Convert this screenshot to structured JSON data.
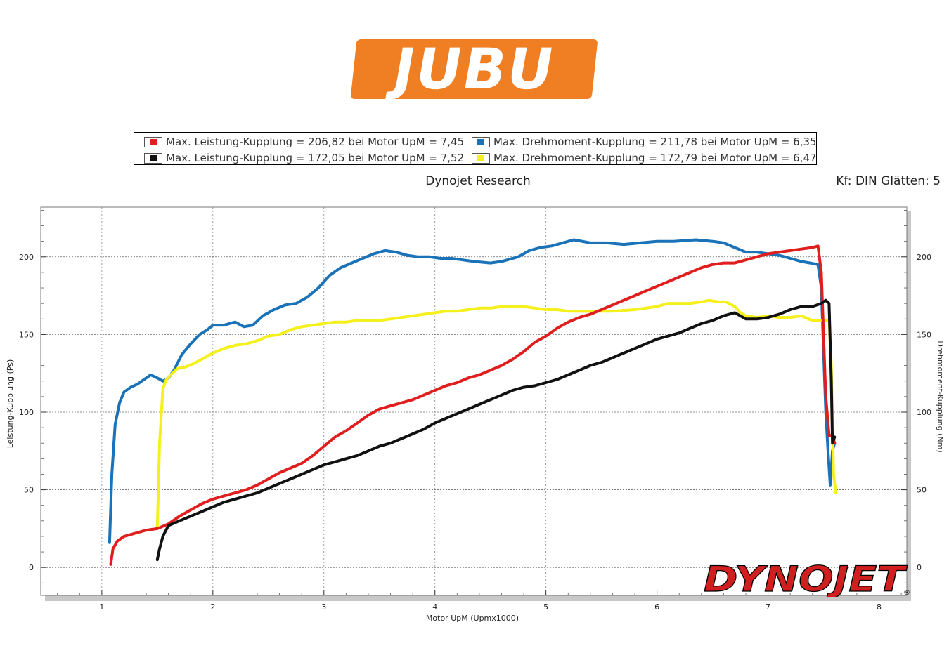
{
  "logo": {
    "text": "JUBU",
    "color": "#f07f24"
  },
  "legend": {
    "items": [
      {
        "label": "Max. Leistung-Kupplung = 206,82 bei Motor UpM = 7,45",
        "color": "#e01e1e"
      },
      {
        "label": "Max. Drehmoment-Kupplung = 211,78 bei Motor UpM = 6,35",
        "color": "#1a72b8"
      },
      {
        "label": "Max. Leistung-Kupplung = 172,05 bei Motor UpM = 7,52",
        "color": "#111111"
      },
      {
        "label": "Max. Drehmoment-Kupplung = 172,79 bei Motor UpM = 6,47",
        "color": "#f5f01c"
      }
    ]
  },
  "header": {
    "title": "Dynojet Research",
    "kf": "Kf: DIN Glätten: 5"
  },
  "brand": {
    "text": "DYNOJET",
    "registered": "®",
    "color": "#d11f1f"
  },
  "chart_data": {
    "type": "line",
    "xlabel": "Motor UpM (Upmx1000)",
    "ylabel_left": "Leistung-Kupplung (Ps)",
    "ylabel_right": "Drehmoment-Kupplung (Nm)",
    "xlim": [
      0.45,
      8.25
    ],
    "ylim": [
      -18,
      232
    ],
    "x_ticks": [
      1,
      2,
      3,
      4,
      5,
      6,
      7,
      8
    ],
    "y_ticks": [
      0,
      50,
      100,
      150,
      200
    ],
    "grid": true,
    "series": [
      {
        "color": "#1a72b8",
        "points": [
          [
            1.07,
            16
          ],
          [
            1.09,
            60
          ],
          [
            1.12,
            92
          ],
          [
            1.16,
            106
          ],
          [
            1.2,
            113
          ],
          [
            1.26,
            116
          ],
          [
            1.32,
            118
          ],
          [
            1.38,
            121
          ],
          [
            1.44,
            124
          ],
          [
            1.5,
            122
          ],
          [
            1.55,
            120
          ],
          [
            1.6,
            122
          ],
          [
            1.65,
            127
          ],
          [
            1.72,
            137
          ],
          [
            1.8,
            144
          ],
          [
            1.88,
            150
          ],
          [
            1.95,
            153
          ],
          [
            2.0,
            156
          ],
          [
            2.1,
            156
          ],
          [
            2.2,
            158
          ],
          [
            2.28,
            155
          ],
          [
            2.36,
            156
          ],
          [
            2.45,
            162
          ],
          [
            2.55,
            166
          ],
          [
            2.65,
            169
          ],
          [
            2.75,
            170
          ],
          [
            2.85,
            174
          ],
          [
            2.95,
            180
          ],
          [
            3.05,
            188
          ],
          [
            3.15,
            193
          ],
          [
            3.25,
            196
          ],
          [
            3.35,
            199
          ],
          [
            3.45,
            202
          ],
          [
            3.55,
            204
          ],
          [
            3.65,
            203
          ],
          [
            3.75,
            201
          ],
          [
            3.85,
            200
          ],
          [
            3.95,
            200
          ],
          [
            4.05,
            199
          ],
          [
            4.15,
            199
          ],
          [
            4.25,
            198
          ],
          [
            4.35,
            197
          ],
          [
            4.5,
            196
          ],
          [
            4.6,
            197
          ],
          [
            4.75,
            200
          ],
          [
            4.85,
            204
          ],
          [
            4.95,
            206
          ],
          [
            5.05,
            207
          ],
          [
            5.15,
            209
          ],
          [
            5.25,
            211
          ],
          [
            5.4,
            209
          ],
          [
            5.55,
            209
          ],
          [
            5.7,
            208
          ],
          [
            5.85,
            209
          ],
          [
            6.0,
            210
          ],
          [
            6.15,
            210
          ],
          [
            6.35,
            211
          ],
          [
            6.5,
            210
          ],
          [
            6.6,
            209
          ],
          [
            6.7,
            206
          ],
          [
            6.8,
            203
          ],
          [
            6.9,
            203
          ],
          [
            7.0,
            202
          ],
          [
            7.1,
            201
          ],
          [
            7.2,
            199
          ],
          [
            7.3,
            197
          ],
          [
            7.38,
            196
          ],
          [
            7.45,
            195
          ],
          [
            7.48,
            180
          ],
          [
            7.5,
            140
          ],
          [
            7.52,
            100
          ],
          [
            7.54,
            75
          ],
          [
            7.56,
            53
          ],
          [
            7.58,
            75
          ],
          [
            7.6,
            80
          ]
        ]
      },
      {
        "color": "#f5f01c",
        "points": [
          [
            1.5,
            25
          ],
          [
            1.52,
            80
          ],
          [
            1.55,
            115
          ],
          [
            1.58,
            121
          ],
          [
            1.62,
            124
          ],
          [
            1.68,
            128
          ],
          [
            1.75,
            129
          ],
          [
            1.82,
            131
          ],
          [
            1.9,
            134
          ],
          [
            2.0,
            138
          ],
          [
            2.1,
            141
          ],
          [
            2.2,
            143
          ],
          [
            2.3,
            144
          ],
          [
            2.4,
            146
          ],
          [
            2.5,
            149
          ],
          [
            2.6,
            150
          ],
          [
            2.7,
            153
          ],
          [
            2.8,
            155
          ],
          [
            2.9,
            156
          ],
          [
            3.0,
            157
          ],
          [
            3.1,
            158
          ],
          [
            3.2,
            158
          ],
          [
            3.3,
            159
          ],
          [
            3.4,
            159
          ],
          [
            3.5,
            159
          ],
          [
            3.6,
            160
          ],
          [
            3.7,
            161
          ],
          [
            3.8,
            162
          ],
          [
            3.9,
            163
          ],
          [
            4.0,
            164
          ],
          [
            4.1,
            165
          ],
          [
            4.2,
            165
          ],
          [
            4.3,
            166
          ],
          [
            4.4,
            167
          ],
          [
            4.5,
            167
          ],
          [
            4.6,
            168
          ],
          [
            4.7,
            168
          ],
          [
            4.8,
            168
          ],
          [
            4.9,
            167
          ],
          [
            5.0,
            166
          ],
          [
            5.1,
            166
          ],
          [
            5.2,
            165
          ],
          [
            5.4,
            165
          ],
          [
            5.6,
            165
          ],
          [
            5.8,
            166
          ],
          [
            6.0,
            168
          ],
          [
            6.1,
            170
          ],
          [
            6.2,
            170
          ],
          [
            6.3,
            170
          ],
          [
            6.4,
            171
          ],
          [
            6.47,
            172
          ],
          [
            6.55,
            171
          ],
          [
            6.62,
            171
          ],
          [
            6.7,
            168
          ],
          [
            6.75,
            164
          ],
          [
            6.8,
            162
          ],
          [
            6.9,
            161
          ],
          [
            7.0,
            162
          ],
          [
            7.1,
            161
          ],
          [
            7.2,
            161
          ],
          [
            7.3,
            162
          ],
          [
            7.4,
            159
          ],
          [
            7.48,
            159
          ],
          [
            7.52,
            159
          ],
          [
            7.55,
            160
          ],
          [
            7.57,
            130
          ],
          [
            7.59,
            60
          ],
          [
            7.61,
            48
          ]
        ]
      },
      {
        "color": "#e01e1e",
        "points": [
          [
            1.08,
            2
          ],
          [
            1.1,
            12
          ],
          [
            1.14,
            17
          ],
          [
            1.2,
            20
          ],
          [
            1.3,
            22
          ],
          [
            1.4,
            24
          ],
          [
            1.5,
            25
          ],
          [
            1.6,
            28
          ],
          [
            1.7,
            33
          ],
          [
            1.8,
            37
          ],
          [
            1.9,
            41
          ],
          [
            2.0,
            44
          ],
          [
            2.1,
            46
          ],
          [
            2.2,
            48
          ],
          [
            2.3,
            50
          ],
          [
            2.4,
            53
          ],
          [
            2.5,
            57
          ],
          [
            2.6,
            61
          ],
          [
            2.7,
            64
          ],
          [
            2.8,
            67
          ],
          [
            2.9,
            72
          ],
          [
            3.0,
            78
          ],
          [
            3.1,
            84
          ],
          [
            3.2,
            88
          ],
          [
            3.3,
            93
          ],
          [
            3.4,
            98
          ],
          [
            3.5,
            102
          ],
          [
            3.6,
            104
          ],
          [
            3.7,
            106
          ],
          [
            3.8,
            108
          ],
          [
            3.9,
            111
          ],
          [
            4.0,
            114
          ],
          [
            4.1,
            117
          ],
          [
            4.2,
            119
          ],
          [
            4.3,
            122
          ],
          [
            4.4,
            124
          ],
          [
            4.5,
            127
          ],
          [
            4.6,
            130
          ],
          [
            4.7,
            134
          ],
          [
            4.8,
            139
          ],
          [
            4.9,
            145
          ],
          [
            5.0,
            149
          ],
          [
            5.1,
            154
          ],
          [
            5.2,
            158
          ],
          [
            5.3,
            161
          ],
          [
            5.4,
            163
          ],
          [
            5.5,
            166
          ],
          [
            5.6,
            169
          ],
          [
            5.7,
            172
          ],
          [
            5.8,
            175
          ],
          [
            5.9,
            178
          ],
          [
            6.0,
            181
          ],
          [
            6.1,
            184
          ],
          [
            6.2,
            187
          ],
          [
            6.3,
            190
          ],
          [
            6.4,
            193
          ],
          [
            6.5,
            195
          ],
          [
            6.6,
            196
          ],
          [
            6.7,
            196
          ],
          [
            6.8,
            198
          ],
          [
            6.9,
            200
          ],
          [
            7.0,
            202
          ],
          [
            7.1,
            203
          ],
          [
            7.2,
            204
          ],
          [
            7.3,
            205
          ],
          [
            7.4,
            206
          ],
          [
            7.45,
            207
          ],
          [
            7.48,
            190
          ],
          [
            7.5,
            150
          ],
          [
            7.52,
            110
          ],
          [
            7.55,
            85
          ],
          [
            7.58,
            85
          ],
          [
            7.6,
            80
          ]
        ]
      },
      {
        "color": "#111111",
        "points": [
          [
            1.5,
            5
          ],
          [
            1.52,
            12
          ],
          [
            1.55,
            20
          ],
          [
            1.6,
            27
          ],
          [
            1.7,
            30
          ],
          [
            1.8,
            33
          ],
          [
            1.9,
            36
          ],
          [
            2.0,
            39
          ],
          [
            2.1,
            42
          ],
          [
            2.2,
            44
          ],
          [
            2.3,
            46
          ],
          [
            2.4,
            48
          ],
          [
            2.5,
            51
          ],
          [
            2.6,
            54
          ],
          [
            2.7,
            57
          ],
          [
            2.8,
            60
          ],
          [
            2.9,
            63
          ],
          [
            3.0,
            66
          ],
          [
            3.1,
            68
          ],
          [
            3.2,
            70
          ],
          [
            3.3,
            72
          ],
          [
            3.4,
            75
          ],
          [
            3.5,
            78
          ],
          [
            3.6,
            80
          ],
          [
            3.7,
            83
          ],
          [
            3.8,
            86
          ],
          [
            3.9,
            89
          ],
          [
            4.0,
            93
          ],
          [
            4.1,
            96
          ],
          [
            4.2,
            99
          ],
          [
            4.3,
            102
          ],
          [
            4.4,
            105
          ],
          [
            4.5,
            108
          ],
          [
            4.6,
            111
          ],
          [
            4.7,
            114
          ],
          [
            4.8,
            116
          ],
          [
            4.9,
            117
          ],
          [
            5.0,
            119
          ],
          [
            5.1,
            121
          ],
          [
            5.2,
            124
          ],
          [
            5.3,
            127
          ],
          [
            5.4,
            130
          ],
          [
            5.5,
            132
          ],
          [
            5.6,
            135
          ],
          [
            5.7,
            138
          ],
          [
            5.8,
            141
          ],
          [
            5.9,
            144
          ],
          [
            6.0,
            147
          ],
          [
            6.1,
            149
          ],
          [
            6.2,
            151
          ],
          [
            6.3,
            154
          ],
          [
            6.4,
            157
          ],
          [
            6.5,
            159
          ],
          [
            6.6,
            162
          ],
          [
            6.7,
            164
          ],
          [
            6.8,
            160
          ],
          [
            6.9,
            160
          ],
          [
            7.0,
            161
          ],
          [
            7.1,
            163
          ],
          [
            7.2,
            166
          ],
          [
            7.3,
            168
          ],
          [
            7.4,
            168
          ],
          [
            7.48,
            170
          ],
          [
            7.52,
            172
          ],
          [
            7.55,
            170
          ],
          [
            7.57,
            120
          ],
          [
            7.58,
            80
          ],
          [
            7.6,
            84
          ]
        ]
      }
    ]
  }
}
